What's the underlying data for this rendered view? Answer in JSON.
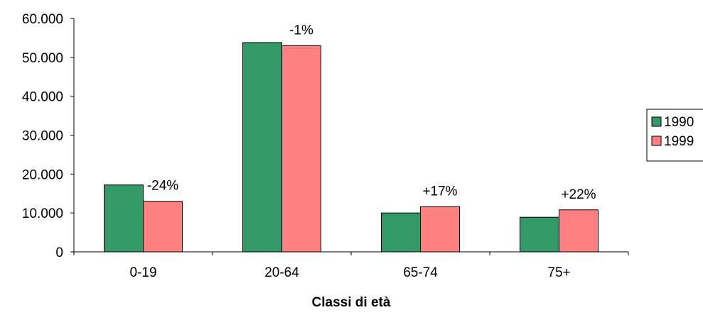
{
  "chart_data": {
    "type": "bar",
    "categories": [
      "0-19",
      "20-64",
      "65-74",
      "75+"
    ],
    "series": [
      {
        "name": "1990",
        "values": [
          17200,
          53800,
          10000,
          8900
        ],
        "color": "#339966"
      },
      {
        "name": "1999",
        "values": [
          13000,
          53000,
          11600,
          10800
        ],
        "color": "#ff8080"
      }
    ],
    "data_labels": [
      "-24%",
      "-1%",
      "+17%",
      "+22%"
    ],
    "xlabel": "Classi di età",
    "ylabel": "",
    "ylim": [
      0,
      60000
    ],
    "y_ticks": [
      {
        "value": 0,
        "label": "0"
      },
      {
        "value": 10000,
        "label": "10.000"
      },
      {
        "value": 20000,
        "label": "20.000"
      },
      {
        "value": 30000,
        "label": "30.000"
      },
      {
        "value": 40000,
        "label": "40.000"
      },
      {
        "value": 50000,
        "label": "50.000"
      },
      {
        "value": 60000,
        "label": "60.000"
      }
    ],
    "grid": false,
    "legend_position": "right"
  }
}
